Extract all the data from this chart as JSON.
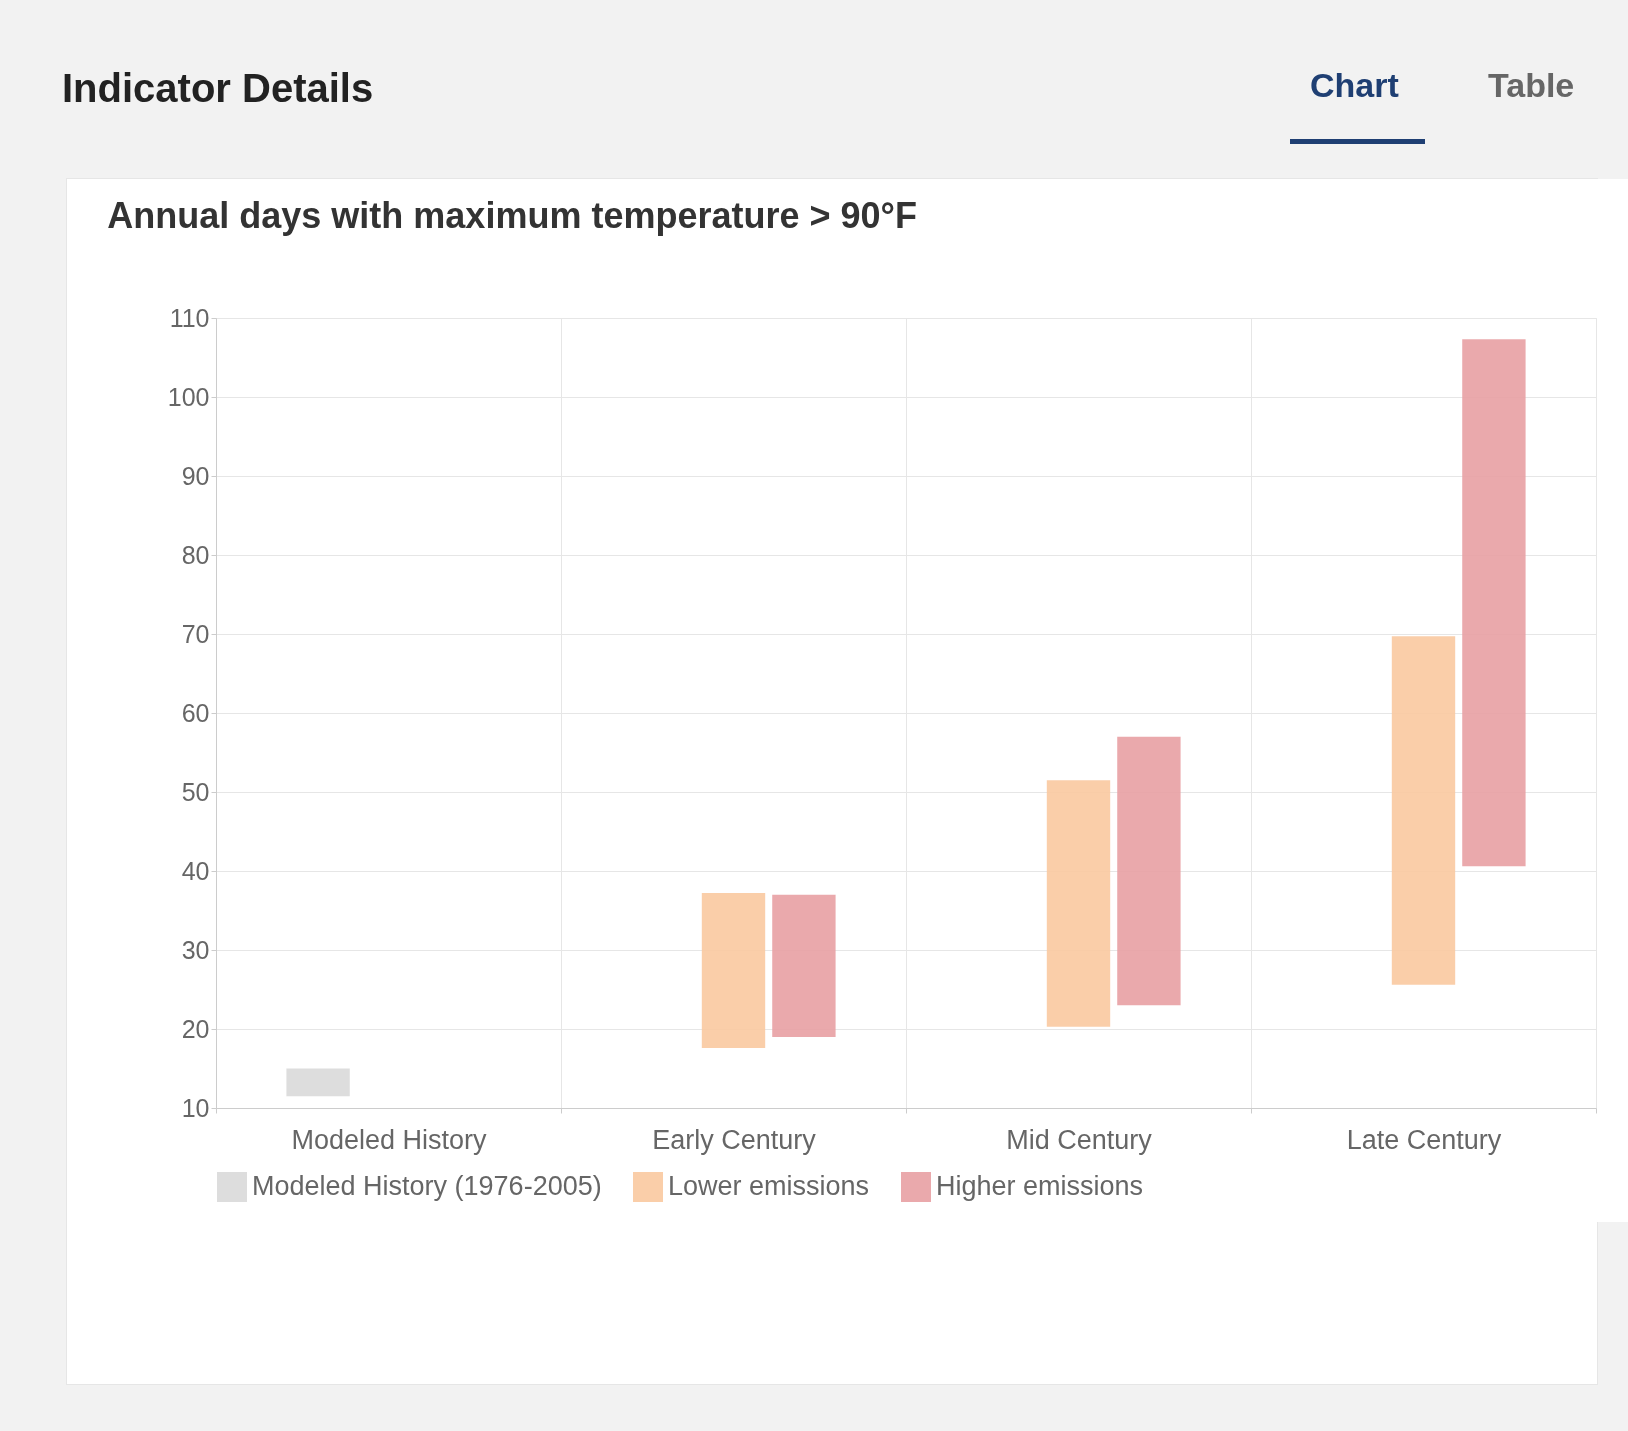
{
  "chart_data": {
    "type": "bar",
    "title": "Annual days with maximum temperature > 90°F",
    "annotations": [
      "Indicator Details",
      "Chart",
      "Table"
    ],
    "categories": [
      "Modeled History",
      "Early Century",
      "Mid Century",
      "Late Century"
    ],
    "series": [
      {
        "name": "Modeled History (1976-2005)",
        "color": "#d9d9d9",
        "base": [
          11.5,
          null,
          null,
          null
        ],
        "values": [
          3.5,
          null,
          null,
          null
        ]
      },
      {
        "name": "Lower emissions",
        "color": "#f9c9a0",
        "base": [
          null,
          17.6,
          20.3,
          25.6
        ],
        "values": [
          null,
          19.6,
          31.2,
          44.1
        ]
      },
      {
        "name": "Higher emissions",
        "color": "#e8a0a3",
        "base": [
          null,
          19,
          23,
          40.6
        ],
        "values": [
          null,
          18,
          34,
          66.7
        ]
      }
    ],
    "ylim": [
      10,
      110
    ],
    "yticks": [
      10,
      20,
      30,
      40,
      50,
      60,
      70,
      80,
      90,
      100,
      110
    ],
    "grid": true,
    "legend": "bottom"
  }
}
